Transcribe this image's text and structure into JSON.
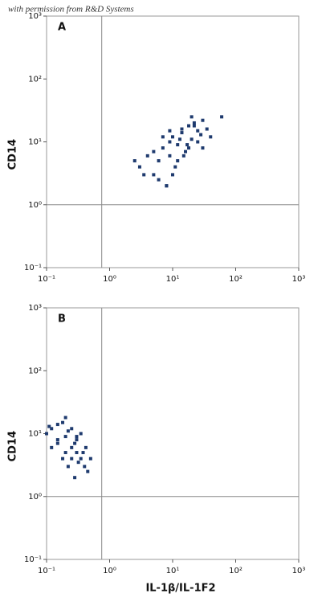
{
  "watermark": "with permission from R&D Systems",
  "chart_data": [
    {
      "type": "scatter",
      "panel": "A",
      "ylabel": "CD14",
      "log": true,
      "color": "#1e3a6e",
      "xlim": [
        0.1,
        1000
      ],
      "ylim": [
        0.1,
        1000
      ],
      "xticks": [
        {
          "value": 0.1,
          "label": "10⁻¹"
        },
        {
          "value": 1,
          "label": "10⁰"
        },
        {
          "value": 10,
          "label": "10¹"
        },
        {
          "value": 100,
          "label": "10²"
        },
        {
          "value": 1000,
          "label": "10³"
        }
      ],
      "yticks": [
        {
          "value": 0.1,
          "label": "10⁻¹"
        },
        {
          "value": 1,
          "label": "10⁰"
        },
        {
          "value": 10,
          "label": "10¹"
        },
        {
          "value": 100,
          "label": "10²"
        },
        {
          "value": 1000,
          "label": "10³"
        }
      ],
      "quadrant": {
        "x": 0.75,
        "y": 1
      },
      "x": [
        3,
        4,
        5,
        6,
        7,
        8,
        9,
        10,
        12,
        14,
        16,
        18,
        20,
        22,
        25,
        28,
        30,
        35,
        40,
        8,
        10,
        12,
        15,
        18,
        20,
        25,
        5,
        6,
        9,
        11,
        13,
        17,
        2.5,
        3.5,
        7,
        9,
        14,
        22,
        30,
        60
      ],
      "y": [
        4,
        6,
        3,
        5,
        8,
        2,
        10,
        12,
        9,
        14,
        7,
        18,
        11,
        20,
        15,
        13,
        22,
        16,
        12,
        2,
        3,
        5,
        6,
        8,
        25,
        10,
        7,
        2.5,
        6,
        4,
        11,
        9,
        5,
        3,
        12,
        15,
        16,
        18,
        8,
        25
      ]
    },
    {
      "type": "scatter",
      "panel": "B",
      "ylabel": "CD14",
      "xlabel": "IL-1β/IL-1F2",
      "log": true,
      "color": "#1e3a6e",
      "xlim": [
        0.1,
        1000
      ],
      "ylim": [
        0.1,
        1000
      ],
      "xticks": [
        {
          "value": 0.1,
          "label": "10⁻¹"
        },
        {
          "value": 1,
          "label": "10⁰"
        },
        {
          "value": 10,
          "label": "10¹"
        },
        {
          "value": 100,
          "label": "10²"
        },
        {
          "value": 1000,
          "label": "10³"
        }
      ],
      "yticks": [
        {
          "value": 0.1,
          "label": "10⁻¹"
        },
        {
          "value": 1,
          "label": "10⁰"
        },
        {
          "value": 10,
          "label": "10¹"
        },
        {
          "value": 100,
          "label": "10²"
        },
        {
          "value": 1000,
          "label": "10³"
        }
      ],
      "quadrant": {
        "x": 0.75,
        "y": 1
      },
      "x": [
        0.1,
        0.12,
        0.15,
        0.18,
        0.2,
        0.22,
        0.25,
        0.28,
        0.3,
        0.35,
        0.4,
        0.45,
        0.12,
        0.15,
        0.2,
        0.25,
        0.3,
        0.35,
        0.18,
        0.22,
        0.28,
        0.32,
        0.38,
        0.42,
        0.15,
        0.2,
        0.25,
        0.3,
        0.5,
        0.11
      ],
      "y": [
        10,
        12,
        8,
        15,
        9,
        11,
        6,
        7,
        5,
        4,
        3,
        2.5,
        6,
        14,
        18,
        12,
        8,
        10,
        4,
        3,
        2,
        3.5,
        5,
        6,
        7,
        5,
        4,
        9,
        4,
        13
      ]
    }
  ]
}
